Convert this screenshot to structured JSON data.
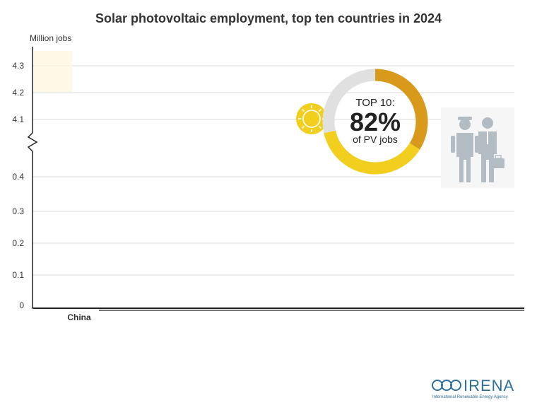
{
  "title": "Solar photovoltaic employment, top ten countries in 2024",
  "unit_label": "Million jobs",
  "chart_data": {
    "type": "bar",
    "categories": [
      "China"
    ],
    "series": [
      {
        "values": [
          null
        ]
      }
    ],
    "y_ticks_upper": [
      "4.3",
      "4.2",
      "4.1"
    ],
    "y_ticks_lower": [
      "0.4",
      "0.3",
      "0.2",
      "0.1",
      "0"
    ],
    "axis_break": true,
    "grid": true
  },
  "donut": {
    "line1": "TOP 10:",
    "value": "82%",
    "line3": "of PV jobs",
    "share": 0.82,
    "colors": {
      "yellow": "#f2cf1e",
      "orange": "#d99a1b",
      "grey": "#e0e0e0"
    }
  },
  "icons": [
    "sun-icon",
    "workers-icon",
    "irena-logo"
  ],
  "logo": {
    "name": "IRENA",
    "tagline": "International Renewable Energy Agency"
  },
  "colors": {
    "grid": "#d9d9d9",
    "axis": "#222222",
    "accent": "#f2cf1e",
    "logo_blue": "#2c6f9a"
  }
}
